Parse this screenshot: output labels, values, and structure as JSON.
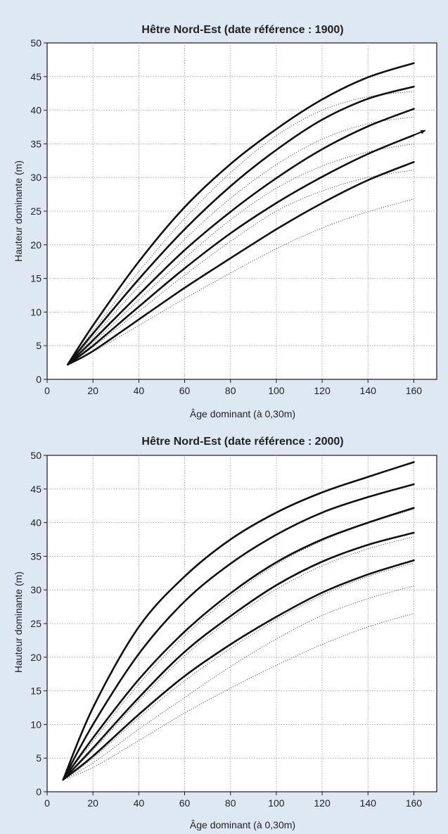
{
  "chart_data": [
    {
      "type": "line",
      "title": "Hêtre Nord-Est (date référence : 1900)",
      "xlabel": "Âge dominant (à 0,30m)",
      "ylabel": "Hauteur dominante (m)",
      "xlim": [
        0,
        170
      ],
      "ylim": [
        0,
        50
      ],
      "xticks": [
        0,
        20,
        40,
        60,
        80,
        100,
        120,
        140,
        160
      ],
      "yticks": [
        0,
        5,
        10,
        15,
        20,
        25,
        30,
        35,
        40,
        45,
        50
      ],
      "grid": true,
      "colors": {
        "solid": "#111111",
        "dotted": "#555555",
        "background": "#dde8f3"
      },
      "x": [
        9,
        20,
        40,
        60,
        80,
        100,
        120,
        140,
        160
      ],
      "series": [
        {
          "style": "solid",
          "values": [
            2.2,
            8.0,
            17.5,
            25.6,
            32.0,
            37.2,
            41.6,
            44.9,
            47.0
          ]
        },
        {
          "style": "solid",
          "values": [
            2.2,
            6.8,
            14.9,
            22.3,
            28.7,
            34.1,
            38.6,
            41.7,
            43.5
          ]
        },
        {
          "style": "solid",
          "values": [
            2.2,
            5.8,
            12.6,
            19.2,
            24.9,
            29.9,
            34.2,
            37.6,
            40.2
          ]
        },
        {
          "style": "solid",
          "values": [
            2.2,
            5.0,
            10.8,
            16.5,
            21.7,
            26.2,
            30.1,
            33.5,
            36.3
          ]
        },
        {
          "style": "solid",
          "values": [
            2.2,
            4.2,
            8.9,
            13.6,
            18.0,
            22.3,
            26.2,
            29.6,
            32.3
          ]
        },
        {
          "style": "dotted",
          "values": [
            2.2,
            7.2,
            16.0,
            23.9,
            30.7,
            36.2,
            40.0,
            42.0,
            42.8
          ]
        },
        {
          "style": "dotted",
          "values": [
            2.2,
            6.3,
            13.8,
            20.8,
            26.9,
            31.9,
            35.7,
            38.0,
            39.0
          ]
        },
        {
          "style": "dotted",
          "values": [
            2.2,
            5.4,
            11.8,
            18.0,
            23.7,
            28.4,
            31.7,
            33.8,
            35.0
          ]
        },
        {
          "style": "dotted",
          "values": [
            2.2,
            4.8,
            10.1,
            15.5,
            20.5,
            25.0,
            28.0,
            30.0,
            31.1
          ]
        },
        {
          "style": "dotted",
          "values": [
            2.2,
            4.1,
            8.0,
            12.0,
            15.8,
            19.4,
            22.5,
            24.9,
            26.8
          ]
        }
      ],
      "arrow_tip": [
        165,
        37.0
      ]
    },
    {
      "type": "line",
      "title": "Hêtre Nord-Est (date référence : 2000)",
      "xlabel": "Âge dominant (à 0,30m)",
      "ylabel": "Hauteur dominante (m)",
      "xlim": [
        0,
        170
      ],
      "ylim": [
        0,
        50
      ],
      "xticks": [
        0,
        20,
        40,
        60,
        80,
        100,
        120,
        140,
        160
      ],
      "yticks": [
        0,
        5,
        10,
        15,
        20,
        25,
        30,
        35,
        40,
        45,
        50
      ],
      "grid": true,
      "colors": {
        "solid": "#111111",
        "dotted": "#555555",
        "background": "#dde8f3"
      },
      "x": [
        7,
        20,
        40,
        60,
        80,
        100,
        120,
        140,
        160
      ],
      "series": [
        {
          "style": "solid",
          "values": [
            1.8,
            12.5,
            24.5,
            32.0,
            37.5,
            41.5,
            44.5,
            46.8,
            49.0
          ]
        },
        {
          "style": "solid",
          "values": [
            1.8,
            10.0,
            20.5,
            28.3,
            33.9,
            38.2,
            41.5,
            43.8,
            45.7
          ]
        },
        {
          "style": "solid",
          "values": [
            1.8,
            8.0,
            16.7,
            23.8,
            29.5,
            34.1,
            37.5,
            40.0,
            42.2
          ]
        },
        {
          "style": "solid",
          "values": [
            1.8,
            6.5,
            14.0,
            20.8,
            26.1,
            30.7,
            34.2,
            36.7,
            38.5
          ]
        },
        {
          "style": "solid",
          "values": [
            1.8,
            5.3,
            11.5,
            17.2,
            21.9,
            26.0,
            29.6,
            32.3,
            34.4
          ]
        },
        {
          "style": "dotted",
          "values": [
            1.8,
            7.5,
            16.0,
            23.2,
            29.0,
            33.8,
            37.3,
            39.9,
            42.0
          ]
        },
        {
          "style": "dotted",
          "values": [
            1.8,
            6.2,
            13.5,
            20.2,
            25.6,
            30.1,
            33.6,
            36.1,
            37.9
          ]
        },
        {
          "style": "dotted",
          "values": [
            1.8,
            5.0,
            11.0,
            16.5,
            21.3,
            25.6,
            29.2,
            32.0,
            34.0
          ]
        },
        {
          "style": "dotted",
          "values": [
            1.8,
            4.3,
            9.3,
            14.0,
            18.6,
            22.7,
            26.2,
            28.7,
            30.6
          ]
        },
        {
          "style": "dotted",
          "values": [
            1.8,
            3.6,
            7.6,
            11.7,
            15.4,
            18.8,
            21.9,
            24.5,
            26.5
          ]
        }
      ]
    }
  ]
}
